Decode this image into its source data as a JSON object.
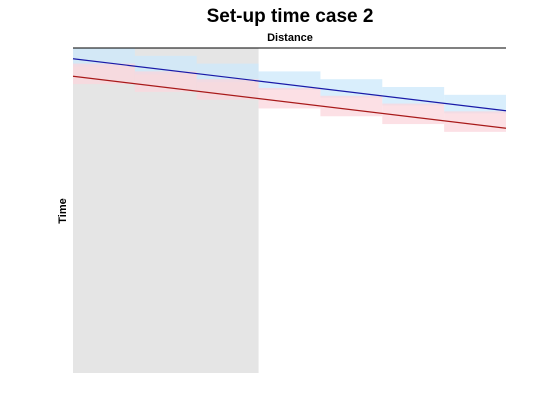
{
  "chart_data": {
    "type": "line",
    "title": "Set-up time case 2",
    "xlabel": "Distance",
    "ylabel": "Time",
    "xlim": [
      0,
      7
    ],
    "ylim": [
      0,
      1
    ],
    "y_reversed": true,
    "x_axis_position": "top",
    "grid": false,
    "legend": "none",
    "shaded_region": {
      "x": [
        0,
        3
      ],
      "color": "#e5e5e5"
    },
    "series": [
      {
        "color": "#1a1aa8",
        "band_color": "#cce8fb",
        "line": {
          "x": [
            0,
            7
          ],
          "y": [
            0.033,
            0.193
          ]
        },
        "band_steps": [
          {
            "x": [
              0,
              1
            ],
            "y": [
              0.0,
              0.057
            ]
          },
          {
            "x": [
              1,
              2
            ],
            "y": [
              0.024,
              0.081
            ]
          },
          {
            "x": [
              2,
              3
            ],
            "y": [
              0.048,
              0.105
            ]
          },
          {
            "x": [
              3,
              4
            ],
            "y": [
              0.072,
              0.129
            ]
          },
          {
            "x": [
              4,
              5
            ],
            "y": [
              0.096,
              0.153
            ]
          },
          {
            "x": [
              5,
              6
            ],
            "y": [
              0.12,
              0.177
            ]
          },
          {
            "x": [
              6,
              7
            ],
            "y": [
              0.144,
              0.201
            ]
          }
        ]
      },
      {
        "color": "#a81a1a",
        "band_color": "#fbd5dc",
        "line": {
          "x": [
            0,
            7
          ],
          "y": [
            0.087,
            0.247
          ]
        },
        "band_steps": [
          {
            "x": [
              0,
              1
            ],
            "y": [
              0.048,
              0.111
            ]
          },
          {
            "x": [
              1,
              2
            ],
            "y": [
              0.072,
              0.135
            ]
          },
          {
            "x": [
              2,
              3
            ],
            "y": [
              0.096,
              0.159
            ]
          },
          {
            "x": [
              3,
              4
            ],
            "y": [
              0.123,
              0.186
            ]
          },
          {
            "x": [
              4,
              5
            ],
            "y": [
              0.147,
              0.21
            ]
          },
          {
            "x": [
              5,
              6
            ],
            "y": [
              0.171,
              0.234
            ]
          },
          {
            "x": [
              6,
              7
            ],
            "y": [
              0.195,
              0.258
            ]
          }
        ]
      }
    ]
  }
}
